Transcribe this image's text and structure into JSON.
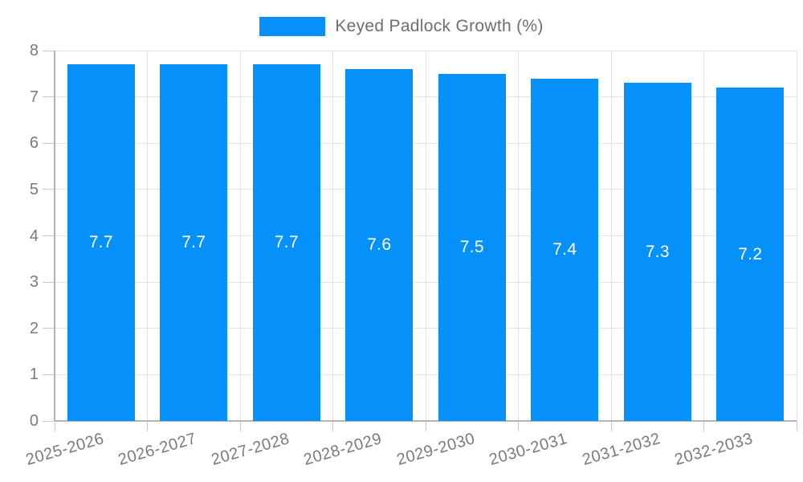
{
  "chart_data": {
    "type": "bar",
    "categories": [
      "2025-2026",
      "2026-2027",
      "2027-2028",
      "2028-2029",
      "2029-2030",
      "2030-2031",
      "2031-2032",
      "2032-2033"
    ],
    "series": [
      {
        "name": "Keyed Padlock Growth (%)",
        "values": [
          7.7,
          7.7,
          7.7,
          7.6,
          7.5,
          7.4,
          7.3,
          7.2
        ],
        "color": "#0590fa"
      }
    ],
    "value_labels": [
      "7.7",
      "7.7",
      "7.7",
      "7.6",
      "7.5",
      "7.4",
      "7.3",
      "7.2"
    ],
    "xlabel": "",
    "ylabel": "",
    "ylim": [
      0,
      8
    ],
    "yticks": [
      0,
      1,
      2,
      3,
      4,
      5,
      6,
      7,
      8
    ],
    "grid": true,
    "legend_position": "top-center"
  },
  "style": {
    "bar_color": "#0590fa",
    "value_label_color": "#ffffff",
    "gridline_color": "#e3e3e3",
    "axis_line_color": "#b3b3b3",
    "tick_color": "#c9c9c9",
    "tick_label_color": "#7a7a7a",
    "legend_text_color": "#6e6e6e",
    "background": "#ffffff"
  }
}
